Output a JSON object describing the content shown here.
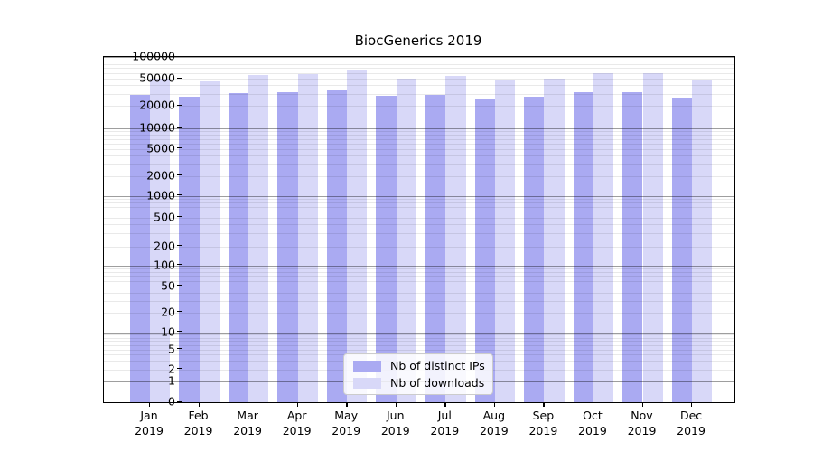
{
  "title": "BiocGenerics 2019",
  "chart_data": {
    "type": "bar",
    "title": "BiocGenerics 2019",
    "categories": [
      "Jan",
      "Feb",
      "Mar",
      "Apr",
      "May",
      "Jun",
      "Jul",
      "Aug",
      "Sep",
      "Oct",
      "Nov",
      "Dec"
    ],
    "year_label": "2019",
    "series": [
      {
        "name": "Nb of distinct IPs",
        "color": "#aaaaf2",
        "values": [
          28600,
          26800,
          30800,
          31500,
          33500,
          27900,
          29300,
          25300,
          27100,
          31900,
          32100,
          26200
        ]
      },
      {
        "name": "Nb of downloads",
        "color": "#d8d8f8",
        "values": [
          50600,
          45200,
          57000,
          57800,
          66200,
          49900,
          54200,
          47500,
          49900,
          59300,
          59400,
          46800
        ]
      }
    ],
    "y_tick_labels": [
      "100000",
      "50000",
      "20000",
      "10000",
      "5000",
      "2000",
      "1000",
      "500",
      "200",
      "100",
      "50",
      "20",
      "10",
      "5",
      "2",
      "1",
      "0"
    ],
    "y_tick_values": [
      100000,
      50000,
      20000,
      10000,
      5000,
      2000,
      1000,
      500,
      200,
      100,
      50,
      20,
      10,
      5,
      2,
      1,
      0
    ],
    "ylim": [
      0,
      100000
    ],
    "xlabel": "",
    "ylabel": "",
    "scale": "log-like with 0 baseline",
    "grid": "horizontal major+minor",
    "legend_position": "lower center"
  },
  "legend": {
    "items": [
      {
        "label": "Nb of distinct IPs",
        "color": "#aaaaf2"
      },
      {
        "label": "Nb of downloads",
        "color": "#d8d8f8"
      }
    ]
  },
  "colors": {
    "bar_ips": "#aaaaf2",
    "bar_downloads": "#d8d8f8",
    "major_grid": "rgba(0,0,0,0.38)",
    "minor_grid": "rgba(0,0,0,0.085)",
    "axis": "#000000",
    "legend_border": "#cccccc"
  }
}
